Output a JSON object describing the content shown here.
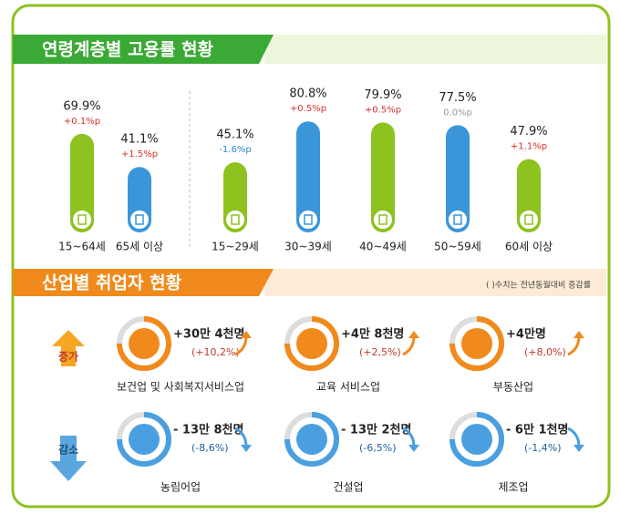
{
  "section1": {
    "title": "연령계층별 고용률 현황",
    "bars": [
      {
        "label": "15~64세",
        "value": 69.9,
        "value_label": "69.9%",
        "change": "+0.1%p",
        "color": "#8dc21f"
      },
      {
        "label": "65세 이상",
        "value": 41.1,
        "value_label": "41.1%",
        "change": "+1.5%p",
        "color": "#3a96d8"
      },
      {
        "label": "15~29세",
        "value": 45.1,
        "value_label": "45.1%",
        "change": "-1.6%p",
        "color": "#8dc21f"
      },
      {
        "label": "30~39세",
        "value": 80.8,
        "value_label": "80.8%",
        "change": "+0.5%p",
        "color": "#3a96d8"
      },
      {
        "label": "40~49세",
        "value": 79.9,
        "value_label": "79.9%",
        "change": "+0.5%p",
        "color": "#8dc21f"
      },
      {
        "label": "50~59세",
        "value": 77.5,
        "value_label": "77.5%",
        "change": "0.0%p",
        "color": "#3a96d8"
      },
      {
        "label": "60세 이상",
        "value": 47.9,
        "value_label": "47.9%",
        "change": "+1.1%p",
        "color": "#8dc21f"
      }
    ]
  },
  "section2": {
    "title": "산업별 취업자 현황",
    "note": "( )수치는 전년동월대비 증감률",
    "groups": [
      {
        "label": "증가",
        "items": [
          {
            "name": "보건업 및 사회복지서비스업",
            "amount": "+30만 4천명",
            "rate": "(+10,2%)"
          },
          {
            "name": "교육 서비스업",
            "amount": "+4만 8천명",
            "rate": "(+2,5%)"
          },
          {
            "name": "부동산업",
            "amount": "+4만명",
            "rate": "(+8,0%)"
          }
        ]
      },
      {
        "label": "감소",
        "items": [
          {
            "name": "농림어업",
            "amount": "- 13만 8천명",
            "rate": "(-8,6%)"
          },
          {
            "name": "건설업",
            "amount": "- 13만 2천명",
            "rate": "(-6,5%)"
          },
          {
            "name": "제조업",
            "amount": "- 6만 1천명",
            "rate": "(-1,4%)"
          }
        ]
      }
    ]
  }
}
